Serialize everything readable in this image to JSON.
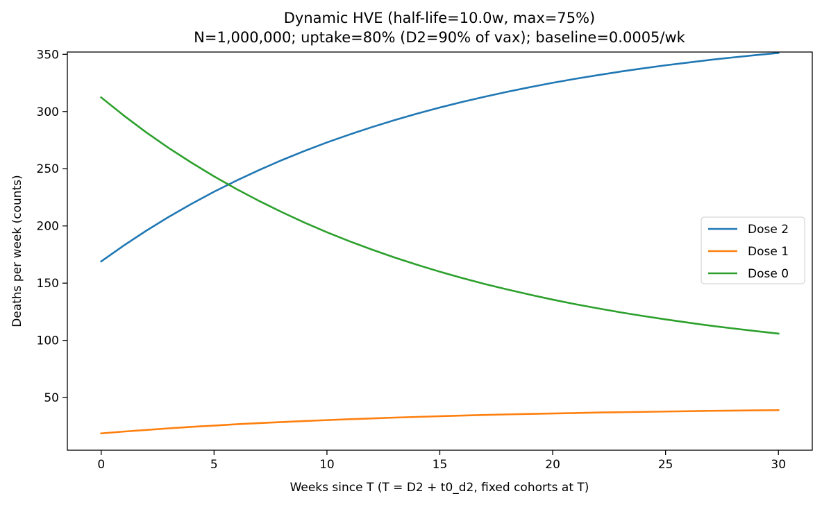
{
  "chart_data": {
    "type": "line",
    "title": "Dynamic HVE (half-life=10.0w, max=75%)",
    "subtitle": "N=1,000,000; uptake=80% (D2=90% of vax); baseline=0.0005/wk",
    "xlabel": "Weeks since T (T = D2 + t0_d2, fixed cohorts at T)",
    "ylabel": "Deaths per week (counts)",
    "xlim": [
      -1.5,
      31.5
    ],
    "ylim": [
      4.0,
      352.0
    ],
    "xticks": [
      "0",
      "5",
      "10",
      "15",
      "20",
      "25",
      "30"
    ],
    "yticks": [
      "50",
      "100",
      "150",
      "200",
      "250",
      "300",
      "350"
    ],
    "grid": false,
    "legend_position": "center-right",
    "series": [
      {
        "name": "Dose 2",
        "color": "#1f77b4",
        "x": [
          0,
          1,
          2,
          3,
          4,
          5,
          6,
          7,
          8,
          9,
          10,
          11,
          12,
          13,
          14,
          15,
          16,
          17,
          18,
          19,
          20,
          21,
          22,
          23,
          24,
          25,
          26,
          27,
          28,
          29,
          30
        ],
        "y": [
          169.0,
          182.9,
          195.9,
          208.0,
          219.3,
          229.9,
          239.7,
          248.9,
          257.5,
          265.5,
          273.0,
          279.9,
          286.4,
          292.5,
          298.2,
          303.5,
          308.4,
          313.0,
          317.3,
          321.3,
          325.1,
          328.6,
          331.8,
          334.9,
          337.7,
          340.4,
          342.8,
          345.2,
          347.3,
          349.3,
          351.2
        ]
      },
      {
        "name": "Dose 1",
        "color": "#ff7f0e",
        "x": [
          0,
          1,
          2,
          3,
          4,
          5,
          6,
          7,
          8,
          9,
          10,
          11,
          12,
          13,
          14,
          15,
          16,
          17,
          18,
          19,
          20,
          21,
          22,
          23,
          24,
          25,
          26,
          27,
          28,
          29,
          30
        ],
        "y": [
          18.7,
          20.3,
          21.7,
          23.1,
          24.4,
          25.5,
          26.7,
          27.7,
          28.6,
          29.5,
          30.3,
          31.1,
          31.8,
          32.5,
          33.1,
          33.7,
          34.3,
          34.8,
          35.3,
          35.7,
          36.1,
          36.5,
          36.9,
          37.2,
          37.5,
          37.8,
          38.1,
          38.4,
          38.6,
          38.8,
          39.0
        ]
      },
      {
        "name": "Dose 0",
        "color": "#2ca02c",
        "x": [
          0,
          1,
          2,
          3,
          4,
          5,
          6,
          7,
          8,
          9,
          10,
          11,
          12,
          13,
          14,
          15,
          16,
          17,
          18,
          19,
          20,
          21,
          22,
          23,
          24,
          25,
          26,
          27,
          28,
          29,
          30
        ],
        "y": [
          312.3,
          296.5,
          281.7,
          268.0,
          255.3,
          243.3,
          232.2,
          221.8,
          212.1,
          203.0,
          194.5,
          186.6,
          179.3,
          172.4,
          166.0,
          160.0,
          154.4,
          149.2,
          144.4,
          139.9,
          135.6,
          131.6,
          128.0,
          124.5,
          121.3,
          118.3,
          115.5,
          112.8,
          110.4,
          108.1,
          105.9
        ]
      }
    ]
  }
}
